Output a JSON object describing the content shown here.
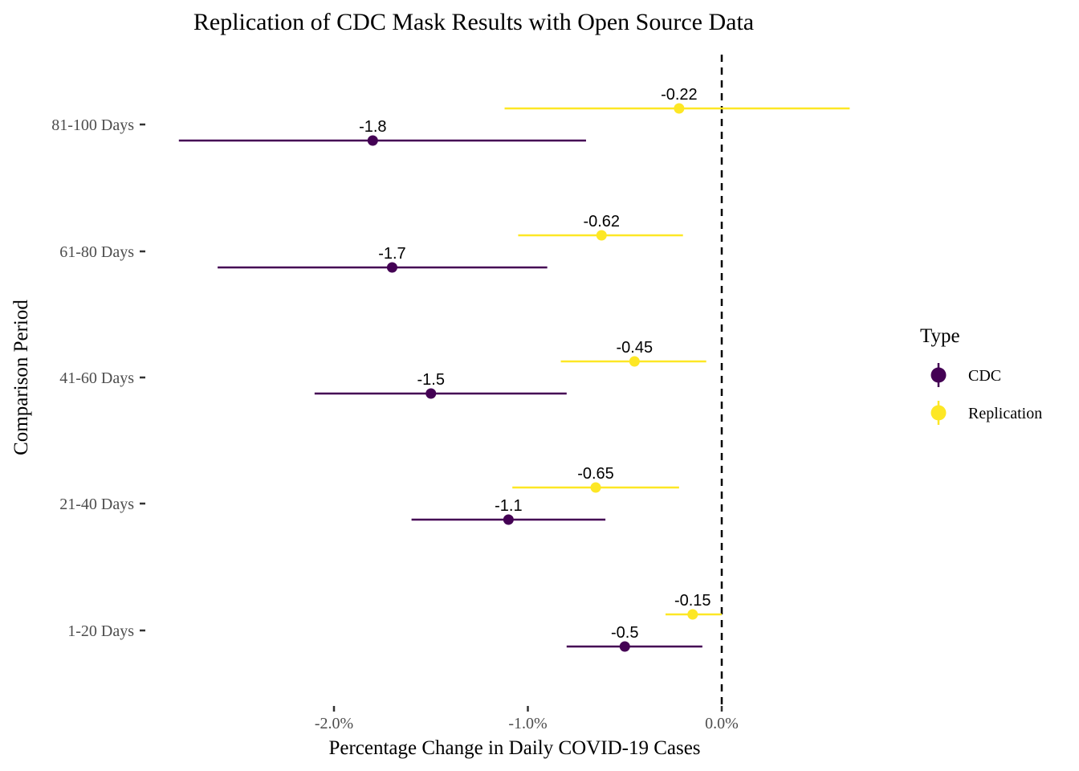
{
  "chart_data": {
    "type": "scatter",
    "subtype": "point-range (coefficient plot)",
    "title": "Replication of CDC Mask Results with Open Source Data",
    "xlabel": "Percentage Change in Daily COVID-19 Cases",
    "ylabel": "Comparison Period",
    "xlim": [
      -2.8,
      0.7
    ],
    "x_tick_values": [
      -2.0,
      -1.0,
      0.0
    ],
    "x_tick_labels": [
      "-2.0%",
      "-1.0%",
      "0.0%"
    ],
    "categories": [
      "1-20 Days",
      "21-40 Days",
      "41-60 Days",
      "61-80 Days",
      "81-100 Days"
    ],
    "reference_line": {
      "x": 0,
      "style": "dashed",
      "color": "#000000"
    },
    "grid": false,
    "legend": {
      "title": "Type",
      "placement": "right"
    },
    "series": [
      {
        "name": "CDC",
        "color": "#440154",
        "estimates": [
          -0.5,
          -1.1,
          -1.5,
          -1.7,
          -1.8
        ],
        "lower": [
          -0.8,
          -1.6,
          -2.1,
          -2.6,
          -2.8
        ],
        "upper": [
          -0.1,
          -0.6,
          -0.8,
          -0.9,
          -0.7
        ],
        "labels": [
          "-0.5",
          "-1.1",
          "-1.5",
          "-1.7",
          "-1.8"
        ]
      },
      {
        "name": "Replication",
        "color": "#FDE725",
        "estimates": [
          -0.15,
          -0.65,
          -0.45,
          -0.62,
          -0.22
        ],
        "lower": [
          -0.29,
          -1.08,
          -0.83,
          -1.05,
          -1.12
        ],
        "upper": [
          0.0,
          -0.22,
          -0.08,
          -0.2,
          0.66
        ],
        "labels": [
          "-0.15",
          "-0.65",
          "-0.45",
          "-0.62",
          "-0.22"
        ]
      }
    ]
  }
}
